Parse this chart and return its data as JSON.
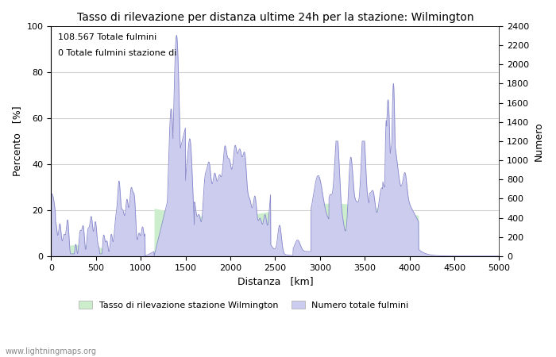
{
  "title": "Tasso di rilevazione per distanza ultime 24h per la stazione: Wilmington",
  "xlabel": "Distanza   [km]",
  "ylabel_left": "Percento   [%]",
  "ylabel_right": "Numero",
  "annotation_line1": "108.567 Totale fulmini",
  "annotation_line2": "0 Totale fulmini stazione di",
  "legend_label1": "Tasso di rilevazione stazione Wilmington",
  "legend_label2": "Numero totale fulmini",
  "watermark": "www.lightningmaps.org",
  "xlim": [
    0,
    5000
  ],
  "ylim_left": [
    0,
    100
  ],
  "ylim_right": [
    0,
    2400
  ],
  "xticks": [
    0,
    500,
    1000,
    1500,
    2000,
    2500,
    3000,
    3500,
    4000,
    4500,
    5000
  ],
  "yticks_left": [
    0,
    20,
    40,
    60,
    80,
    100
  ],
  "yticks_right": [
    0,
    200,
    400,
    600,
    800,
    1000,
    1200,
    1400,
    1600,
    1800,
    2000,
    2200,
    2400
  ],
  "fill_color_blue": "#ccccee",
  "fill_color_green": "#cceecc",
  "line_color": "#8888cc",
  "background_color": "#ffffff",
  "grid_color": "#bbbbbb"
}
